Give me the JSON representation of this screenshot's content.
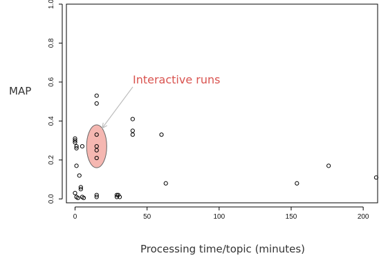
{
  "chart_data": {
    "type": "scatter",
    "xlabel": "Processing time/topic (minutes)",
    "ylabel": "MAP",
    "xlim": [
      -6,
      210
    ],
    "ylim": [
      -0.02,
      1.0
    ],
    "xticks": [
      0,
      50,
      100,
      150,
      200
    ],
    "yticks": [
      0.0,
      0.2,
      0.4,
      0.6,
      0.8,
      1.0
    ],
    "grid": false,
    "points": [
      {
        "x": 0,
        "y": 0.31
      },
      {
        "x": 0,
        "y": 0.3
      },
      {
        "x": 0,
        "y": 0.29
      },
      {
        "x": 1,
        "y": 0.27
      },
      {
        "x": 1,
        "y": 0.26
      },
      {
        "x": 1,
        "y": 0.17
      },
      {
        "x": 0,
        "y": 0.03
      },
      {
        "x": 1,
        "y": 0.01
      },
      {
        "x": 2,
        "y": 0.005
      },
      {
        "x": 3,
        "y": 0.12
      },
      {
        "x": 4,
        "y": 0.06
      },
      {
        "x": 4,
        "y": 0.05
      },
      {
        "x": 5,
        "y": 0.27
      },
      {
        "x": 5,
        "y": 0.01
      },
      {
        "x": 6,
        "y": 0.005
      },
      {
        "x": 15,
        "y": 0.53
      },
      {
        "x": 15,
        "y": 0.49
      },
      {
        "x": 15,
        "y": 0.33
      },
      {
        "x": 15,
        "y": 0.27
      },
      {
        "x": 15,
        "y": 0.25
      },
      {
        "x": 15,
        "y": 0.21
      },
      {
        "x": 15,
        "y": 0.02
      },
      {
        "x": 15,
        "y": 0.01
      },
      {
        "x": 29,
        "y": 0.02
      },
      {
        "x": 29,
        "y": 0.01
      },
      {
        "x": 30,
        "y": 0.02
      },
      {
        "x": 31,
        "y": 0.01
      },
      {
        "x": 40,
        "y": 0.41
      },
      {
        "x": 40,
        "y": 0.35
      },
      {
        "x": 40,
        "y": 0.33
      },
      {
        "x": 60,
        "y": 0.33
      },
      {
        "x": 63,
        "y": 0.08
      },
      {
        "x": 154,
        "y": 0.08
      },
      {
        "x": 176,
        "y": 0.17
      },
      {
        "x": 209,
        "y": 0.11
      }
    ],
    "annotation": {
      "text": "Interactive runs",
      "color": "#d9534f",
      "highlight": {
        "x_center": 15,
        "y_center": 0.27,
        "x_radius": 7,
        "y_radius": 0.11,
        "fill": "#f5b7b1"
      }
    }
  }
}
